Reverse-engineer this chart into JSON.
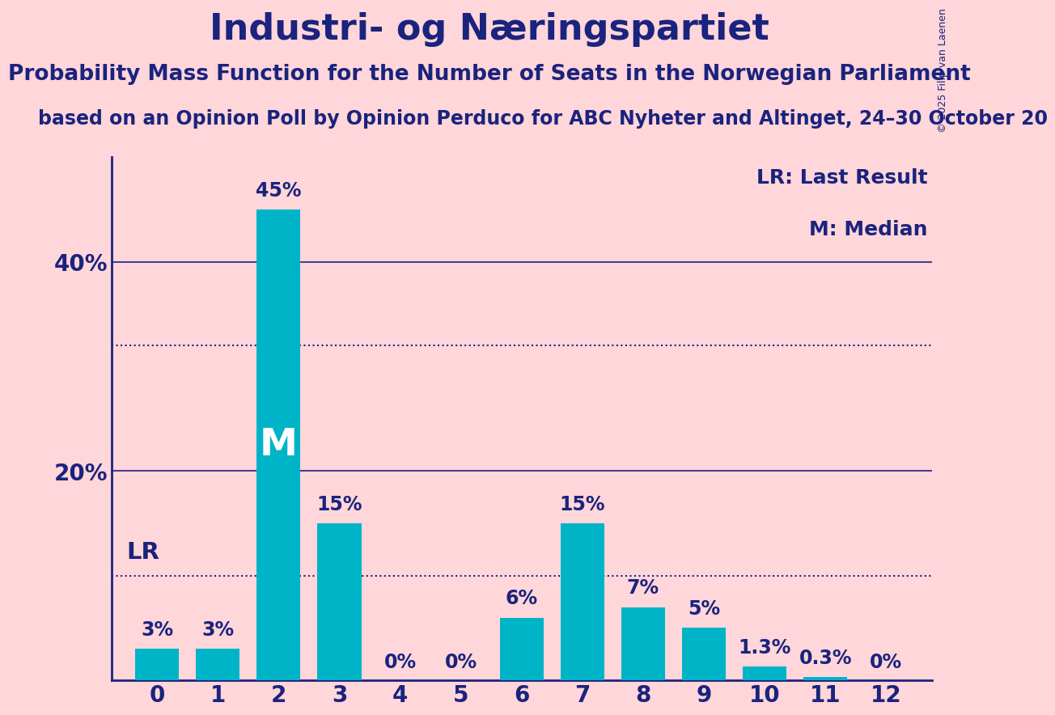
{
  "title": "Industri- og Næringspartiet",
  "subtitle": "Probability Mass Function for the Number of Seats in the Norwegian Parliament",
  "source": "based on an Opinion Poll by Opinion Perduco for ABC Nyheter and Altinget, 24–30 October 20",
  "copyright": "© 2025 Filip van Laenen",
  "categories": [
    0,
    1,
    2,
    3,
    4,
    5,
    6,
    7,
    8,
    9,
    10,
    11,
    12
  ],
  "values": [
    3,
    3,
    45,
    15,
    0,
    0,
    6,
    15,
    7,
    5,
    1.3,
    0.3,
    0
  ],
  "value_labels": [
    "3%",
    "3%",
    "45%",
    "15%",
    "0%",
    "0%",
    "6%",
    "15%",
    "7%",
    "5%",
    "1.3%",
    "0.3%",
    "0%"
  ],
  "bar_color": "#00B4C8",
  "background_color": "#FFD6D9",
  "text_color": "#1A237E",
  "axis_color": "#1A237E",
  "ylim": [
    0,
    50
  ],
  "lr_line_value": 10,
  "lr_line2_value": 32,
  "lr_label": "LR",
  "median_label": "M",
  "median_bar": 2,
  "legend_lr": "LR: Last Result",
  "legend_m": "M: Median",
  "title_fontsize": 32,
  "subtitle_fontsize": 19,
  "source_fontsize": 17,
  "bar_label_fontsize": 17,
  "axis_label_fontsize": 20,
  "legend_fontsize": 18,
  "lr_label_fontsize": 21,
  "median_fontsize": 34,
  "copyright_fontsize": 9
}
